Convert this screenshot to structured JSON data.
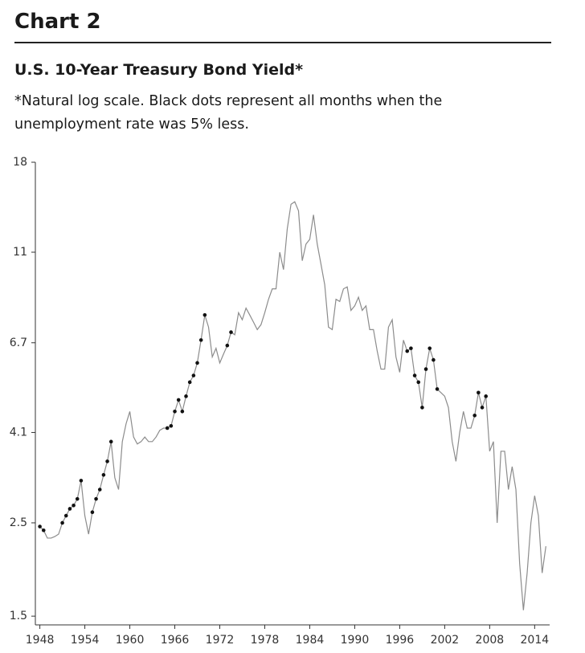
{
  "chart_data": {
    "type": "line",
    "title": "Chart 2",
    "subtitle": "U.S. 10-Year Treasury Bond Yield*",
    "note": "*Natural log scale. Black dots represent all months when the unemployment rate was 5% less.",
    "y_scale": "log",
    "xlim": [
      1947.4,
      2016
    ],
    "xticks": [
      1948,
      1954,
      1960,
      1966,
      1972,
      1978,
      1984,
      1990,
      1996,
      2002,
      2008,
      2014
    ],
    "ylim": [
      1.43,
      18
    ],
    "yticks": [
      1.5,
      2.5,
      4.1,
      6.7,
      11,
      18
    ],
    "x": [
      1948,
      1948.5,
      1949,
      1949.5,
      1950,
      1950.5,
      1951,
      1951.5,
      1952,
      1952.5,
      1953,
      1953.5,
      1954,
      1954.5,
      1955,
      1955.5,
      1956,
      1956.5,
      1957,
      1957.5,
      1958,
      1958.5,
      1959,
      1959.5,
      1960,
      1960.5,
      1961,
      1961.5,
      1962,
      1962.5,
      1963,
      1963.5,
      1964,
      1964.5,
      1965,
      1965.5,
      1966,
      1966.5,
      1967,
      1967.5,
      1968,
      1968.5,
      1969,
      1969.5,
      1970,
      1970.5,
      1971,
      1971.5,
      1972,
      1972.5,
      1973,
      1973.5,
      1974,
      1974.5,
      1975,
      1975.5,
      1976,
      1976.5,
      1977,
      1977.5,
      1978,
      1978.5,
      1979,
      1979.5,
      1980,
      1980.5,
      1981,
      1981.5,
      1982,
      1982.5,
      1983,
      1983.5,
      1984,
      1984.5,
      1985,
      1985.5,
      1986,
      1986.5,
      1987,
      1987.5,
      1988,
      1988.5,
      1989,
      1989.5,
      1990,
      1990.5,
      1991,
      1991.5,
      1992,
      1992.5,
      1993,
      1993.5,
      1994,
      1994.5,
      1995,
      1995.5,
      1996,
      1996.5,
      1997,
      1997.5,
      1998,
      1998.5,
      1999,
      1999.5,
      2000,
      2000.5,
      2001,
      2001.5,
      2002,
      2002.5,
      2003,
      2003.5,
      2004,
      2004.5,
      2005,
      2005.5,
      2006,
      2006.5,
      2007,
      2007.5,
      2008,
      2008.5,
      2009,
      2009.5,
      2010,
      2010.5,
      2011,
      2011.5,
      2012,
      2012.5,
      2013,
      2013.5,
      2014,
      2014.5,
      2015,
      2015.5
    ],
    "series": [
      {
        "color": "#8c8c8c",
        "marker": "line",
        "values": [
          2.45,
          2.4,
          2.3,
          2.3,
          2.32,
          2.35,
          2.5,
          2.6,
          2.7,
          2.75,
          2.85,
          3.15,
          2.6,
          2.35,
          2.65,
          2.85,
          3.0,
          3.25,
          3.5,
          3.9,
          3.2,
          3.0,
          3.9,
          4.3,
          4.6,
          4.0,
          3.85,
          3.9,
          4.0,
          3.9,
          3.9,
          4.0,
          4.15,
          4.2,
          4.2,
          4.25,
          4.6,
          4.9,
          4.6,
          5.0,
          5.4,
          5.6,
          6.0,
          6.8,
          7.8,
          7.3,
          6.2,
          6.5,
          6.0,
          6.3,
          6.6,
          7.1,
          7.0,
          7.9,
          7.6,
          8.1,
          7.8,
          7.5,
          7.2,
          7.4,
          7.9,
          8.5,
          9.0,
          9.0,
          11.0,
          10.0,
          12.5,
          14.3,
          14.5,
          13.8,
          10.5,
          11.5,
          11.8,
          13.5,
          11.5,
          10.3,
          9.2,
          7.3,
          7.2,
          8.5,
          8.4,
          9.0,
          9.1,
          8.0,
          8.2,
          8.6,
          8.0,
          8.2,
          7.2,
          7.2,
          6.4,
          5.8,
          5.8,
          7.3,
          7.6,
          6.2,
          5.7,
          6.8,
          6.4,
          6.5,
          5.6,
          5.4,
          4.7,
          5.8,
          6.5,
          6.1,
          5.2,
          5.1,
          5.0,
          4.7,
          3.9,
          3.5,
          4.1,
          4.6,
          4.2,
          4.2,
          4.5,
          5.1,
          4.7,
          5.0,
          3.7,
          3.9,
          2.5,
          3.7,
          3.7,
          3.0,
          3.4,
          3.0,
          2.0,
          1.55,
          1.9,
          2.5,
          2.9,
          2.6,
          1.9,
          2.2
        ]
      },
      {
        "color": "#111111",
        "marker": "dot",
        "values": [
          2.45,
          2.4,
          null,
          null,
          null,
          null,
          2.5,
          2.6,
          2.7,
          2.75,
          2.85,
          3.15,
          null,
          null,
          2.65,
          2.85,
          3.0,
          3.25,
          3.5,
          3.9,
          null,
          null,
          null,
          null,
          null,
          null,
          null,
          null,
          null,
          null,
          null,
          null,
          null,
          null,
          4.2,
          4.25,
          4.6,
          4.9,
          4.6,
          5.0,
          5.4,
          5.6,
          6.0,
          6.8,
          7.8,
          null,
          null,
          null,
          null,
          null,
          6.6,
          7.1,
          null,
          null,
          null,
          null,
          null,
          null,
          null,
          null,
          null,
          null,
          null,
          null,
          null,
          null,
          null,
          null,
          null,
          null,
          null,
          null,
          null,
          null,
          null,
          null,
          null,
          null,
          null,
          null,
          null,
          null,
          null,
          null,
          null,
          null,
          null,
          null,
          null,
          null,
          null,
          null,
          null,
          null,
          null,
          null,
          null,
          null,
          6.4,
          6.5,
          5.6,
          5.4,
          4.7,
          5.8,
          6.5,
          6.1,
          5.2,
          null,
          null,
          null,
          null,
          null,
          null,
          null,
          null,
          null,
          4.5,
          5.1,
          4.7,
          5.0,
          null,
          null,
          null,
          null,
          null,
          null,
          null,
          null,
          null,
          null,
          null,
          null,
          null,
          null,
          null,
          null
        ]
      }
    ]
  }
}
